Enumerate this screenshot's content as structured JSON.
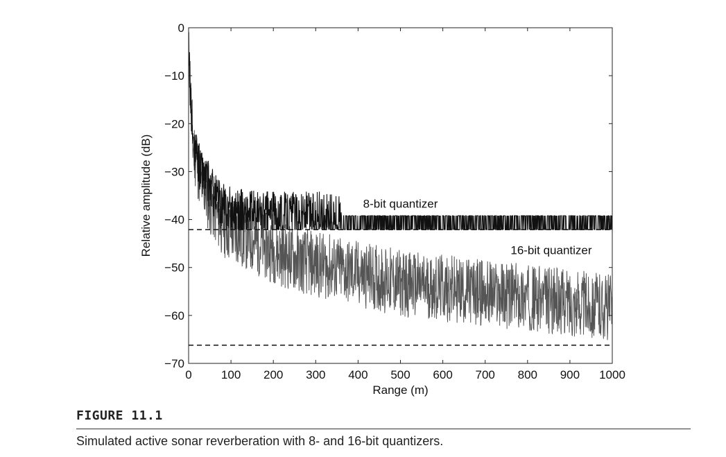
{
  "figure": {
    "label": "FIGURE 11.1",
    "caption": "Simulated active sonar reverberation with 8- and 16-bit quantizers."
  },
  "chart_data": {
    "type": "line",
    "title": "",
    "xlabel": "Range (m)",
    "ylabel": "Relative amplitude (dB)",
    "xlim": [
      0,
      1000
    ],
    "ylim": [
      -70,
      0
    ],
    "x_ticks": [
      "0",
      "100",
      "200",
      "300",
      "400",
      "500",
      "600",
      "700",
      "800",
      "900",
      "1000"
    ],
    "y_ticks": [
      "0",
      "−10",
      "−20",
      "−30",
      "−40",
      "−50",
      "−60",
      "−70"
    ],
    "grid": false,
    "series": [
      {
        "name": "8-bit quantizer",
        "color": "#111111",
        "x": [
          0,
          5,
          10,
          20,
          30,
          50,
          75,
          100,
          150,
          200,
          250,
          300,
          350,
          400,
          500,
          600,
          700,
          800,
          900,
          1000
        ],
        "y": [
          -2,
          -15,
          -25,
          -27,
          -30,
          -33,
          -37,
          -38,
          -39,
          -39,
          -39,
          -39,
          -40,
          -40,
          -40,
          -40,
          -40,
          -40,
          -40,
          -40
        ]
      },
      {
        "name": "16-bit quantizer",
        "color": "#555555",
        "x": [
          0,
          5,
          10,
          20,
          30,
          50,
          75,
          100,
          150,
          200,
          250,
          300,
          350,
          400,
          500,
          600,
          700,
          800,
          900,
          1000
        ],
        "y": [
          -2,
          -15,
          -25,
          -29,
          -33,
          -37,
          -41,
          -43,
          -45,
          -47,
          -49,
          -50,
          -51,
          -52,
          -54,
          -55,
          -56,
          -57,
          -58,
          -59
        ]
      }
    ],
    "reference_lines": [
      {
        "y": -42.1,
        "style": "dashed",
        "color": "#111111"
      },
      {
        "y": -66.2,
        "style": "dashed",
        "color": "#111111"
      }
    ],
    "annotations": [
      {
        "text": "8-bit quantizer",
        "x": 500,
        "y": -37.5
      },
      {
        "text": "16-bit quantizer",
        "x": 760,
        "y": -47.2
      }
    ]
  }
}
